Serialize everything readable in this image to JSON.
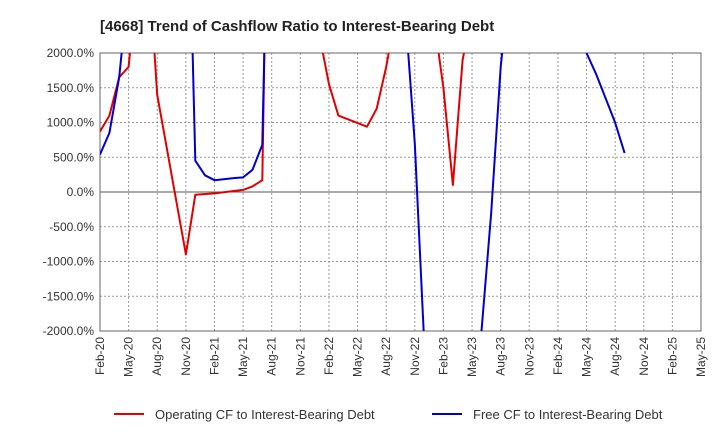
{
  "chart_data": {
    "type": "line",
    "title": "[4668]  Trend of Cashflow Ratio to Interest-Bearing Debt",
    "xlabel": "",
    "ylabel": "",
    "ylim": [
      -2000,
      2000
    ],
    "yticks": [
      2000,
      1500,
      1000,
      500,
      0,
      -500,
      -1000,
      -1500,
      -2000
    ],
    "ytick_labels": [
      "2000.0%",
      "1500.0%",
      "1000.0%",
      "500.0%",
      "0.0%",
      "-500.0%",
      "-1000.0%",
      "-1500.0%",
      "-2000.0%"
    ],
    "x_categories": [
      "Feb-20",
      "May-20",
      "Aug-20",
      "Nov-20",
      "Feb-21",
      "May-21",
      "Aug-21",
      "Nov-21",
      "Feb-22",
      "May-22",
      "Aug-22",
      "Nov-22",
      "Feb-23",
      "May-23",
      "Aug-23",
      "Nov-23",
      "Feb-24",
      "May-24",
      "Aug-24",
      "Nov-24",
      "Feb-25",
      "May-25"
    ],
    "grid": true,
    "legend_position": "bottom",
    "series": [
      {
        "name": "Operating CF to Interest-Bearing Debt",
        "color": "#e00000",
        "segments": [
          [
            [
              0,
              870
            ],
            [
              0.33,
              1100
            ],
            [
              0.67,
              1650
            ],
            [
              1,
              1800
            ],
            [
              1.33,
              3200
            ]
          ],
          [
            [
              1.67,
              3500
            ],
            [
              2,
              1400
            ],
            [
              3,
              -900
            ],
            [
              3.33,
              -40
            ],
            [
              4,
              -20
            ],
            [
              5,
              30
            ],
            [
              5.33,
              80
            ],
            [
              5.67,
              170
            ],
            [
              5.75,
              2200
            ]
          ],
          [
            [
              7.6,
              2400
            ],
            [
              8,
              1550
            ],
            [
              8.33,
              1100
            ],
            [
              9.33,
              940
            ],
            [
              9.67,
              1200
            ],
            [
              10,
              1800
            ],
            [
              10.3,
              2500
            ]
          ],
          [
            [
              11.7,
              2400
            ],
            [
              12,
              1500
            ],
            [
              12.33,
              100
            ],
            [
              12.67,
              1900
            ],
            [
              13,
              2600
            ]
          ]
        ]
      },
      {
        "name": "Free CF to Interest-Bearing Debt",
        "color": "#0000cc",
        "segments": [
          [
            [
              0,
              540
            ],
            [
              0.33,
              850
            ],
            [
              0.67,
              1650
            ],
            [
              1,
              3000
            ]
          ],
          [
            [
              3.2,
              2600
            ],
            [
              3.33,
              450
            ],
            [
              3.67,
              240
            ],
            [
              4,
              170
            ],
            [
              4.67,
              200
            ],
            [
              5,
              210
            ],
            [
              5.33,
              320
            ],
            [
              5.67,
              680
            ],
            [
              5.75,
              2200
            ]
          ],
          [
            [
              10.7,
              2400
            ],
            [
              11,
              700
            ],
            [
              11.33,
              -2200
            ]
          ],
          [
            [
              13.2,
              -2200
            ],
            [
              13.33,
              -2000
            ],
            [
              13.67,
              -300
            ],
            [
              14,
              1800
            ],
            [
              14.2,
              2600
            ]
          ],
          [
            [
              16.9,
              2100
            ],
            [
              17,
              2000
            ],
            [
              17.33,
              1700
            ],
            [
              18,
              1000
            ],
            [
              18.33,
              560
            ]
          ]
        ]
      }
    ]
  }
}
